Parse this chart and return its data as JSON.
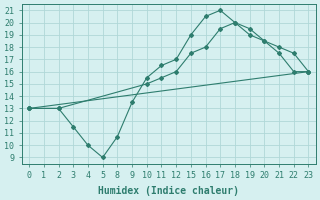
{
  "line1_x": [
    0,
    2,
    3,
    4,
    5,
    8,
    9,
    10,
    11,
    12,
    15,
    16,
    17,
    18,
    19,
    20,
    21,
    22,
    23
  ],
  "line1_y": [
    13,
    13,
    11.5,
    10,
    9,
    10.7,
    13.5,
    15.5,
    16.5,
    17,
    19,
    20.5,
    21,
    20,
    19.5,
    18.5,
    17.5,
    16,
    16
  ],
  "line2_x": [
    0,
    2,
    10,
    11,
    12,
    15,
    16,
    17,
    18,
    19,
    20,
    21,
    22,
    23
  ],
  "line2_y": [
    13,
    13,
    15,
    15.5,
    16,
    17.5,
    18,
    19.5,
    20,
    19,
    18.5,
    18,
    17.5,
    16
  ],
  "line3_x": [
    0,
    23
  ],
  "line3_y": [
    13,
    16
  ],
  "color": "#2e7d6e",
  "bg_color": "#d6f0f0",
  "grid_color": "#b0d8d8",
  "xlabel": "Humidex (Indice chaleur)",
  "xlim": [
    -0.5,
    23.5
  ],
  "ylim": [
    8.5,
    21.5
  ],
  "xticks": [
    0,
    1,
    2,
    3,
    4,
    5,
    8,
    9,
    10,
    11,
    12,
    15,
    16,
    17,
    18,
    19,
    20,
    21,
    22,
    23
  ],
  "yticks": [
    9,
    10,
    11,
    12,
    13,
    14,
    15,
    16,
    17,
    18,
    19,
    20,
    21
  ],
  "xlabel_fontsize": 7,
  "tick_fontsize": 6
}
